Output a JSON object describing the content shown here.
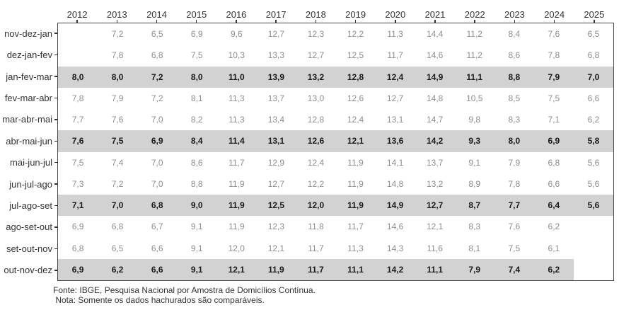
{
  "chart_data": {
    "type": "table",
    "title": "",
    "xlabel": "",
    "ylabel": "",
    "legend": "none",
    "decimal_separator": ",",
    "columns": [
      "2012",
      "2013",
      "2014",
      "2015",
      "2016",
      "2017",
      "2018",
      "2019",
      "2020",
      "2021",
      "2022",
      "2023",
      "2024",
      "2025"
    ],
    "rows": [
      {
        "label": "nov-dez-jan",
        "highlight": false,
        "values": [
          null,
          7.2,
          6.5,
          6.9,
          9.6,
          12.7,
          12.3,
          12.2,
          11.3,
          14.4,
          11.2,
          8.4,
          7.6,
          6.5
        ]
      },
      {
        "label": "dez-jan-fev",
        "highlight": false,
        "values": [
          null,
          7.8,
          6.8,
          7.5,
          10.3,
          13.3,
          12.7,
          12.5,
          11.7,
          14.6,
          11.2,
          8.6,
          7.8,
          6.8
        ]
      },
      {
        "label": "jan-fev-mar",
        "highlight": true,
        "values": [
          8.0,
          8.0,
          7.2,
          8.0,
          11.0,
          13.9,
          13.2,
          12.8,
          12.4,
          14.9,
          11.1,
          8.8,
          7.9,
          7.0
        ]
      },
      {
        "label": "fev-mar-abr",
        "highlight": false,
        "values": [
          7.8,
          7.9,
          7.2,
          8.1,
          11.3,
          13.7,
          13.0,
          12.6,
          12.7,
          14.8,
          10.5,
          8.5,
          7.5,
          6.6
        ]
      },
      {
        "label": "mar-abr-mai",
        "highlight": false,
        "values": [
          7.7,
          7.6,
          7.0,
          8.2,
          11.3,
          13.4,
          12.8,
          12.4,
          13.1,
          14.7,
          9.8,
          8.3,
          7.1,
          6.2
        ]
      },
      {
        "label": "abr-mai-jun",
        "highlight": true,
        "values": [
          7.6,
          7.5,
          6.9,
          8.4,
          11.4,
          13.1,
          12.6,
          12.1,
          13.6,
          14.2,
          9.3,
          8.0,
          6.9,
          5.8
        ]
      },
      {
        "label": "mai-jun-jul",
        "highlight": false,
        "values": [
          7.5,
          7.4,
          7.0,
          8.6,
          11.7,
          12.9,
          12.4,
          11.9,
          14.1,
          13.7,
          9.1,
          7.9,
          6.8,
          5.6
        ]
      },
      {
        "label": "jun-jul-ago",
        "highlight": false,
        "values": [
          7.3,
          7.2,
          7.0,
          8.8,
          11.9,
          12.7,
          12.2,
          11.9,
          14.8,
          13.2,
          8.9,
          7.8,
          6.6,
          5.6
        ]
      },
      {
        "label": "jul-ago-set",
        "highlight": true,
        "values": [
          7.1,
          7.0,
          6.8,
          9.0,
          11.9,
          12.5,
          12.0,
          11.9,
          14.9,
          12.7,
          8.7,
          7.7,
          6.4,
          5.6
        ]
      },
      {
        "label": "ago-set-out",
        "highlight": false,
        "values": [
          6.9,
          6.8,
          6.7,
          9.1,
          11.9,
          12.3,
          11.8,
          11.7,
          14.6,
          12.1,
          8.3,
          7.6,
          6.2,
          null
        ]
      },
      {
        "label": "set-out-nov",
        "highlight": false,
        "values": [
          6.8,
          6.5,
          6.6,
          9.1,
          12.0,
          12.1,
          11.7,
          11.3,
          14.3,
          11.6,
          8.1,
          7.5,
          6.1,
          null
        ]
      },
      {
        "label": "out-nov-dez",
        "highlight": true,
        "values": [
          6.9,
          6.2,
          6.6,
          9.1,
          12.1,
          11.9,
          11.7,
          11.1,
          14.2,
          11.1,
          7.9,
          7.4,
          6.2,
          null
        ]
      }
    ]
  },
  "footer": {
    "source": "Fonte: IBGE, Pesquisa Nacional por Amostra de Domicílios Contínua.",
    "note": " Nota: Somente os dados hachurados são comparáveis."
  },
  "colors": {
    "highlight_band": "#d2d2d2",
    "normal_value_text": "#8e8e8e",
    "highlight_value_text": "#1a1a1a",
    "axis_text": "#333333",
    "panel_border": "#444444",
    "background": "#ffffff"
  }
}
